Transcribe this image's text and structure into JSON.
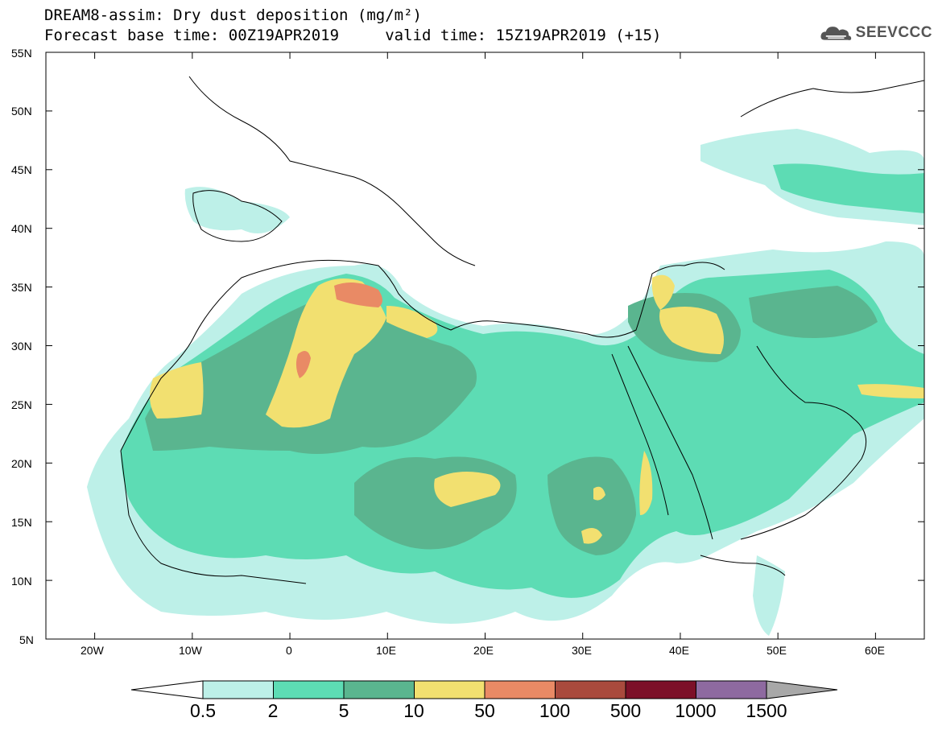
{
  "title": {
    "line1": "DREAM8-assim: Dry dust deposition (mg/m²)",
    "line2": "Forecast base time: 00Z19APR2019     valid time: 15Z19APR2019 (+15)"
  },
  "logo": {
    "text": "SEEVCCC",
    "icon": "cloud-logo-icon"
  },
  "map": {
    "lat_range": [
      5,
      55
    ],
    "lon_range": [
      -25,
      65
    ],
    "lat_labels": [
      "55N",
      "50N",
      "45N",
      "40N",
      "35N",
      "30N",
      "25N",
      "20N",
      "15N",
      "10N",
      "5N"
    ],
    "lon_labels": [
      "20W",
      "10W",
      "0",
      "10E",
      "20E",
      "30E",
      "40E",
      "50E",
      "60E"
    ]
  },
  "colorbar": {
    "labels": [
      "0.5",
      "2",
      "5",
      "10",
      "50",
      "100",
      "500",
      "1000",
      "1500"
    ],
    "colors": [
      "#bdf0e8",
      "#5ddcb4",
      "#5ab58f",
      "#f2e070",
      "#e98a65",
      "#a94a3d",
      "#7c1028",
      "#8e6aa0"
    ],
    "under_color": "#ffffff",
    "over_color": "#a8a8a8"
  }
}
